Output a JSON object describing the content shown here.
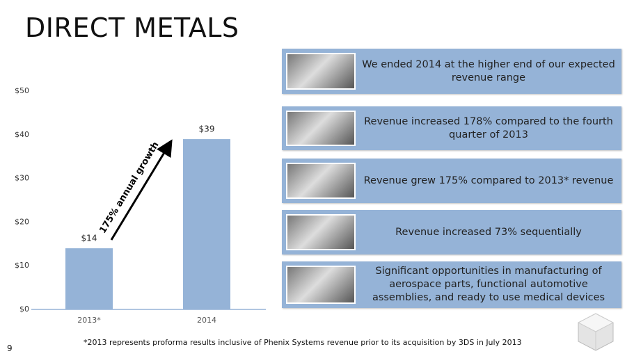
{
  "title": "DIRECT METALS",
  "chart_data": {
    "type": "bar",
    "categories": [
      "2013*",
      "2014"
    ],
    "values": [
      14,
      39
    ],
    "value_labels": [
      "$14",
      "$39"
    ],
    "color": "#95b3d7",
    "ylim": [
      0,
      50
    ],
    "yticks": [
      {
        "value": 0,
        "label": "$0"
      },
      {
        "value": 10,
        "label": "$10"
      },
      {
        "value": 20,
        "label": "$20"
      },
      {
        "value": 30,
        "label": "$30"
      },
      {
        "value": 40,
        "label": "$40"
      },
      {
        "value": 50,
        "label": "$50"
      }
    ],
    "annotation": "175% annual growth",
    "grid": false
  },
  "panels": [
    "We ended 2014 at the higher end of our expected revenue range",
    "Revenue increased 178%  compared to the fourth quarter of 2013",
    "Revenue grew 175% compared to 2013* revenue",
    "Revenue increased 73% sequentially",
    "Significant opportunities in manufacturing of aerospace parts, functional automotive assemblies, and ready to use medical devices"
  ],
  "footnote": "*2013 represents proforma results inclusive of Phenix Systems revenue prior to its acquisition by 3DS in July 2013",
  "page_number": "9"
}
